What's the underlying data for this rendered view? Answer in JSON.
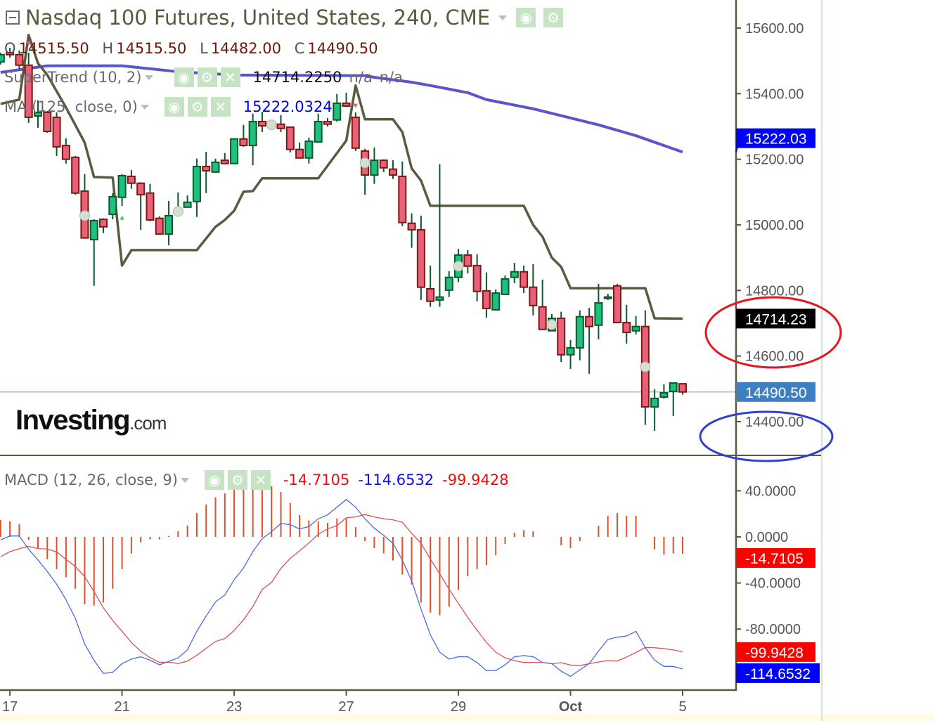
{
  "header": {
    "title": "Nasdaq 100 Futures, United States, 240, CME",
    "ohlc": {
      "o_label": "O",
      "o": "14515.50",
      "h_label": "H",
      "h": "14515.50",
      "l_label": "L",
      "l": "14482.00",
      "c_label": "C",
      "c": "14490.50"
    }
  },
  "indicators": {
    "supertrend": {
      "label": "SuperTrend (10, 2)",
      "value": "14714.2250",
      "extra1": "n/a",
      "extra2": "n/a"
    },
    "ma": {
      "label": "MA (125, close, 0)",
      "value": "15222.0324"
    },
    "macd": {
      "label": "MACD (12, 26, close, 9)",
      "hist": "-14.7105",
      "macd": "-114.6532",
      "signal": "-99.9428"
    }
  },
  "icons": {
    "collapse": "collapse-square-icon",
    "eye": "eye-icon",
    "gear": "gear-icon",
    "close": "close-icon",
    "caret": "caret-down-icon"
  },
  "logo": {
    "text": "Investing",
    "suffix": ".com"
  },
  "colors": {
    "candle_up": "#1fbf7f",
    "candle_up_border": "#0b5a2c",
    "candle_down": "#e8607a",
    "candle_down_border": "#7a1a10",
    "wick": "#0b5a2c",
    "supertrend": "#5b5a3e",
    "ma": "#5a55cc",
    "macd_line": "#4a6ee0",
    "signal_line": "#e05050",
    "histogram": "#e0502a",
    "last_price_line": "#9cc3e8",
    "annotation_red": "#e8141e",
    "annotation_blue": "#3040d0"
  },
  "chart_data": [
    {
      "type": "candlestick",
      "x_tick_labels": [
        {
          "bar": 1,
          "label": "17"
        },
        {
          "bar": 13,
          "label": "21"
        },
        {
          "bar": 25,
          "label": "23"
        },
        {
          "bar": 37,
          "label": "27"
        },
        {
          "bar": 49,
          "label": "29"
        },
        {
          "bar": 61,
          "label": "Oct",
          "bold": true
        },
        {
          "bar": 73,
          "label": "5"
        }
      ],
      "y_ticks": [
        {
          "value": 15600,
          "label": "15600.00"
        },
        {
          "value": 15400,
          "label": "15400.00"
        },
        {
          "value": 15200,
          "label": "15200.00"
        },
        {
          "value": 15000,
          "label": "15000.00"
        },
        {
          "value": 14800,
          "label": "14800.00"
        },
        {
          "value": 14600,
          "label": "14600.00"
        },
        {
          "value": 14400,
          "label": "14400.00"
        }
      ],
      "ylim": [
        14330,
        15686
      ],
      "candles_ohlc": [
        [
          15497,
          15525,
          15489,
          15519
        ],
        [
          15525,
          15540,
          15510,
          15519
        ],
        [
          15519,
          15532,
          15476,
          15487
        ],
        [
          15487,
          15525,
          15311,
          15328
        ],
        [
          15332,
          15380,
          15296,
          15343
        ],
        [
          15343,
          15347,
          15281,
          15285
        ],
        [
          15328,
          15343,
          15210,
          15238
        ],
        [
          15242,
          15264,
          15187,
          15200
        ],
        [
          15206,
          15210,
          15092,
          15097
        ],
        [
          15103,
          15155,
          14960,
          14960
        ],
        [
          14955,
          15017,
          14814,
          15013
        ],
        [
          15017,
          15020,
          14975,
          14994
        ],
        [
          15032,
          15097,
          15017,
          15086
        ],
        [
          15084,
          15155,
          15058,
          15150
        ],
        [
          15148,
          15167,
          15110,
          15127
        ],
        [
          15127,
          15130,
          14985,
          15092
        ],
        [
          15097,
          15125,
          15011,
          15015
        ],
        [
          15020,
          15026,
          14972,
          14972
        ],
        [
          14972,
          15073,
          14938,
          15028
        ],
        [
          15037,
          15099,
          15030,
          15047
        ],
        [
          15054,
          15090,
          15054,
          15069
        ],
        [
          15071,
          15202,
          15024,
          15178
        ],
        [
          15178,
          15223,
          15097,
          15165
        ],
        [
          15161,
          15202,
          15161,
          15191
        ],
        [
          15197,
          15219,
          15187,
          15187
        ],
        [
          15187,
          15262,
          15185,
          15262
        ],
        [
          15262,
          15305,
          15238,
          15242
        ],
        [
          15242,
          15339,
          15182,
          15315
        ],
        [
          15315,
          15345,
          15283,
          15302
        ],
        [
          15300,
          15320,
          15290,
          15310
        ],
        [
          15307,
          15335,
          15283,
          15294
        ],
        [
          15298,
          15300,
          15221,
          15230
        ],
        [
          15230,
          15251,
          15204,
          15204
        ],
        [
          15204,
          15266,
          15187,
          15255
        ],
        [
          15253,
          15339,
          15251,
          15315
        ],
        [
          15315,
          15326,
          15300,
          15307
        ],
        [
          15320,
          15399,
          15315,
          15371
        ],
        [
          15371,
          15403,
          15360,
          15362
        ],
        [
          15328,
          15343,
          15225,
          15234
        ],
        [
          15225,
          15232,
          15092,
          15152
        ],
        [
          15152,
          15236,
          15125,
          15197
        ],
        [
          15197,
          15200,
          15161,
          15174
        ],
        [
          15170,
          15197,
          15140,
          15152
        ],
        [
          15148,
          15193,
          14996,
          15007
        ],
        [
          15005,
          15035,
          14930,
          14985
        ],
        [
          14985,
          15028,
          14771,
          14810
        ],
        [
          14805,
          14876,
          14750,
          14767
        ],
        [
          14771,
          15185,
          14750,
          14780
        ],
        [
          14801,
          14859,
          14780,
          14840
        ],
        [
          14840,
          14927,
          14825,
          14908
        ],
        [
          14908,
          14923,
          14852,
          14874
        ],
        [
          14876,
          14910,
          14767,
          14797
        ],
        [
          14799,
          14855,
          14717,
          14745
        ],
        [
          14741,
          14803,
          14741,
          14792
        ],
        [
          14788,
          14846,
          14788,
          14835
        ],
        [
          14840,
          14884,
          14822,
          14857
        ],
        [
          14857,
          14876,
          14792,
          14810
        ],
        [
          14810,
          14880,
          14724,
          14754
        ],
        [
          14750,
          14833,
          14681,
          14681
        ],
        [
          14677,
          14728,
          14677,
          14715
        ],
        [
          14715,
          14735,
          14582,
          14604
        ],
        [
          14604,
          14649,
          14561,
          14625
        ],
        [
          14625,
          14739,
          14587,
          14720
        ],
        [
          14720,
          14747,
          14546,
          14690
        ],
        [
          14694,
          14820,
          14651,
          14762
        ],
        [
          14777,
          14790,
          14771,
          14780
        ],
        [
          14814,
          14820,
          14702,
          14702
        ],
        [
          14702,
          14756,
          14638,
          14672
        ],
        [
          14677,
          14722,
          14666,
          14690
        ],
        [
          14690,
          14739,
          14390,
          14445
        ],
        [
          14445,
          14499,
          14372,
          14471
        ],
        [
          14475,
          14514,
          14470,
          14488
        ],
        [
          14492,
          14518,
          14417,
          14518
        ],
        [
          14515.5,
          14515.5,
          14482,
          14490.5
        ]
      ],
      "supertrend": [
        [
          0,
          15369
        ],
        [
          2,
          15382
        ],
        [
          3,
          15579
        ],
        [
          4,
          15493
        ],
        [
          5,
          15457
        ],
        [
          7,
          15358
        ],
        [
          9,
          15251
        ],
        [
          10,
          15146
        ],
        [
          12,
          15144
        ],
        [
          13,
          14876
        ],
        [
          14,
          14923
        ],
        [
          21,
          14923
        ],
        [
          23,
          14994
        ],
        [
          24,
          15015
        ],
        [
          25,
          15043
        ],
        [
          26,
          15101
        ],
        [
          27,
          15103
        ],
        [
          28,
          15142
        ],
        [
          34,
          15142
        ],
        [
          37,
          15257
        ],
        [
          38,
          15425
        ],
        [
          39,
          15322
        ],
        [
          42,
          15322
        ],
        [
          43,
          15283
        ],
        [
          44,
          15172
        ],
        [
          45,
          15135
        ],
        [
          46,
          15058
        ],
        [
          56,
          15058
        ],
        [
          57,
          15000
        ],
        [
          58,
          14964
        ],
        [
          59,
          14900
        ],
        [
          60,
          14872
        ],
        [
          61,
          14807
        ],
        [
          69,
          14807
        ],
        [
          70,
          14715
        ],
        [
          73,
          14714.23
        ]
      ],
      "ma_125": [
        [
          0,
          15465
        ],
        [
          5,
          15485
        ],
        [
          13,
          15485
        ],
        [
          19,
          15467
        ],
        [
          25,
          15457
        ],
        [
          39,
          15455
        ],
        [
          40,
          15450
        ],
        [
          44,
          15435
        ],
        [
          46,
          15425
        ],
        [
          50,
          15403
        ],
        [
          52,
          15382
        ],
        [
          57,
          15354
        ],
        [
          64,
          15305
        ],
        [
          68,
          15272
        ],
        [
          73,
          15222.03
        ]
      ],
      "markers": [
        [
          9,
          15028
        ],
        [
          19,
          15041
        ],
        [
          29,
          15305
        ],
        [
          39,
          15189
        ],
        [
          49,
          14874
        ],
        [
          59,
          14696
        ],
        [
          69,
          14567
        ]
      ],
      "signals": [
        {
          "bar": 3,
          "type": "sell",
          "price": 15555
        },
        {
          "bar": 13,
          "type": "buy",
          "price": 15020
        },
        {
          "bar": 38,
          "type": "sell",
          "price": 15365
        }
      ],
      "last_price": 14490.5,
      "price_labels": [
        {
          "label": "15222.03",
          "value": 15222.03,
          "color": "#0000ff"
        },
        {
          "label": "14714.23",
          "value": 14714.23,
          "color": "#000000"
        },
        {
          "label": "14490.50",
          "value": 14490.5,
          "color": "#3d7fc0"
        }
      ],
      "annotations": [
        {
          "shape": "ellipse",
          "color": "red",
          "around": "14714.23"
        },
        {
          "shape": "ellipse",
          "color": "blue",
          "around": "14400.00"
        }
      ]
    },
    {
      "type": "bar",
      "title": "MACD (12, 26, close, 9)",
      "y_ticks": [
        {
          "value": 40,
          "label": "40.0000"
        },
        {
          "value": 0,
          "label": "0.0000"
        },
        {
          "value": -40,
          "label": "-40.0000"
        },
        {
          "value": -80,
          "label": "-80.0000"
        }
      ],
      "histogram": [
        14.6,
        13.6,
        11,
        -2.6,
        -9.8,
        -19.5,
        -28,
        -35,
        -45,
        -58.5,
        -59.6,
        -57,
        -45,
        -28,
        -14.4,
        -4.7,
        -2.2,
        -2.2,
        0.8,
        4.9,
        9.8,
        20.7,
        28,
        34.3,
        37.8,
        44,
        45,
        47.6,
        44,
        44,
        39,
        29.3,
        19,
        14.2,
        13.4,
        12.2,
        16,
        15.9,
        8.5,
        -3.7,
        -9.8,
        -14.4,
        -20.5,
        -32.7,
        -41.3,
        -57,
        -65.7,
        -68,
        -60.6,
        -46.3,
        -34.1,
        -28,
        -24.4,
        -15.9,
        -6.1,
        3.5,
        5.9,
        4.9,
        0,
        0,
        -7.3,
        -9.8,
        -3.7,
        0,
        9.6,
        18.3,
        20.7,
        18.3,
        18.3,
        0,
        -10.8,
        -15.4,
        -14.4,
        -14.7105
      ],
      "macd": [
        -2.6,
        0.8,
        0.8,
        -10.8,
        -20,
        -30,
        -41,
        -54.5,
        -70.7,
        -93,
        -107,
        -118.5,
        -117.5,
        -110,
        -106,
        -104,
        -107,
        -111,
        -108,
        -105,
        -98,
        -82,
        -68.7,
        -56.5,
        -50.4,
        -37.2,
        -27,
        -12.8,
        -1.6,
        4.5,
        11.6,
        10.6,
        6.9,
        8.9,
        15.7,
        19.1,
        25.8,
        32.5,
        25.8,
        15.7,
        7.5,
        1.4,
        -5.7,
        -20,
        -38.2,
        -62.6,
        -85,
        -100,
        -106,
        -104,
        -104,
        -109,
        -116,
        -116,
        -111,
        -104,
        -103,
        -104,
        -109,
        -110,
        -116.5,
        -121,
        -115.4,
        -110,
        -99,
        -89,
        -87,
        -86,
        -82,
        -96,
        -107,
        -112.4,
        -112.4,
        -114.6532
      ],
      "signal": [
        -17.2,
        -12.8,
        -10.2,
        -8.2,
        -10.2,
        -10.5,
        -13,
        -19.5,
        -25.7,
        -34.5,
        -47.4,
        -61.5,
        -72.5,
        -82,
        -91.6,
        -99.3,
        -104.8,
        -108.8,
        -108.8,
        -109.9,
        -107.8,
        -102.7,
        -96.7,
        -90.8,
        -88.2,
        -81.2,
        -72,
        -60.4,
        -45.6,
        -39.5,
        -27.4,
        -18.7,
        -12.1,
        -5.3,
        2.3,
        6.9,
        9.8,
        16.6,
        17.3,
        19.4,
        17.3,
        15.8,
        14.8,
        12.7,
        3.1,
        -5.6,
        -19.3,
        -32,
        -45.4,
        -57.7,
        -69.9,
        -81,
        -91.6,
        -100.1,
        -104.9,
        -107.5,
        -108.9,
        -108.9,
        -109,
        -110,
        -109.2,
        -111.2,
        -111.7,
        -110,
        -108.6,
        -107.3,
        -107.7,
        -104.3,
        -100.3,
        -96,
        -96.2,
        -97,
        -98,
        -99.9428
      ],
      "value_labels": [
        {
          "label": "-14.7105",
          "value": -14.7105,
          "color": "#ff0000"
        },
        {
          "label": "-99.9428",
          "value": -99.9428,
          "color": "#ff0000"
        },
        {
          "label": "-114.6532",
          "value": -114.6532,
          "color": "#0000ff"
        }
      ]
    }
  ]
}
